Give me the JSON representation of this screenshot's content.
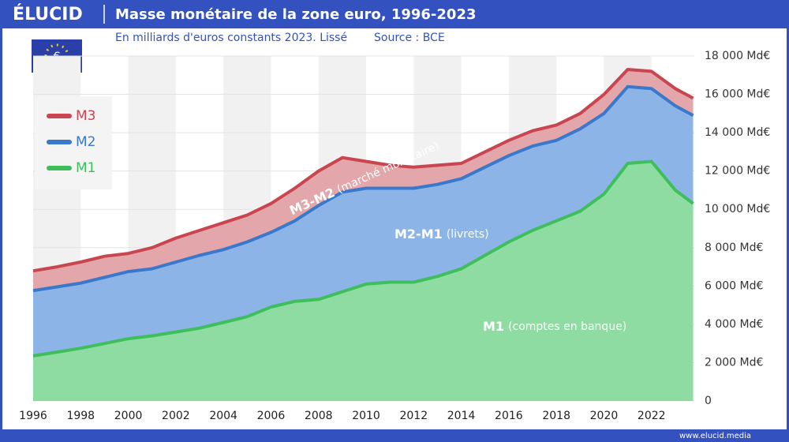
{
  "brand": "ÉLUCID",
  "footer": "www.elucid.media",
  "chart_data": {
    "type": "area",
    "title": "Masse monétaire de la zone euro, 1996-2023",
    "subtitle": "En milliards d'euros constants 2023. Lissé",
    "source": "Source : BCE",
    "x": [
      1996,
      1997,
      1998,
      1999,
      2000,
      2001,
      2002,
      2003,
      2004,
      2005,
      2006,
      2007,
      2008,
      2009,
      2010,
      2011,
      2012,
      2013,
      2014,
      2015,
      2016,
      2017,
      2018,
      2019,
      2020,
      2021,
      2022,
      2023,
      2023.75
    ],
    "series": [
      {
        "name": "M3",
        "color": "#c9454f",
        "fill": "#e2a6ab",
        "values": [
          6790,
          7000,
          7250,
          7550,
          7700,
          8000,
          8500,
          8900,
          9300,
          9700,
          10300,
          11100,
          12000,
          12700,
          12500,
          12300,
          12200,
          12300,
          12400,
          13000,
          13600,
          14100,
          14400,
          15000,
          16000,
          17300,
          17200,
          16300,
          15800
        ]
      },
      {
        "name": "M2",
        "color": "#3a78cc",
        "fill": "#8db4e6",
        "values": [
          5760,
          5950,
          6150,
          6450,
          6750,
          6900,
          7250,
          7600,
          7900,
          8300,
          8800,
          9400,
          10200,
          10900,
          11100,
          11100,
          11100,
          11300,
          11600,
          12200,
          12800,
          13300,
          13600,
          14200,
          15000,
          16400,
          16300,
          15400,
          14900
        ]
      },
      {
        "name": "M1",
        "color": "#3fbf5c",
        "fill": "#8edca1",
        "values": [
          2350,
          2550,
          2750,
          3000,
          3250,
          3400,
          3600,
          3800,
          4100,
          4400,
          4900,
          5200,
          5300,
          5700,
          6100,
          6200,
          6200,
          6500,
          6900,
          7600,
          8300,
          8900,
          9400,
          9900,
          10800,
          12400,
          12500,
          11000,
          10300
        ]
      }
    ],
    "annotations": [
      {
        "bold": "M3-M2",
        "text": "(marché monétaire)"
      },
      {
        "bold": "M2-M1",
        "text": "(livrets)"
      },
      {
        "bold": "M1",
        "text": "(comptes en banque)"
      }
    ],
    "xlim": [
      1996,
      2023.8
    ],
    "xticks": [
      1996,
      1998,
      2000,
      2002,
      2004,
      2006,
      2008,
      2010,
      2012,
      2014,
      2016,
      2018,
      2020,
      2022
    ],
    "ylim": [
      0,
      18000
    ],
    "yticks": [
      0,
      {
        "value": 2000,
        "label": "2 000 Md€"
      },
      {
        "value": 4000,
        "label": "4 000 Md€"
      },
      {
        "value": 6000,
        "label": "6 000 Md€"
      },
      {
        "value": 8000,
        "label": "8 000 Md€"
      },
      {
        "value": 10000,
        "label": "10 000 Md€"
      },
      {
        "value": 12000,
        "label": "12 000 Md€"
      },
      {
        "value": 14000,
        "label": "14 000 Md€"
      },
      {
        "value": 16000,
        "label": "16 000 Md€"
      },
      {
        "value": 18000,
        "label": "18 000 Md€"
      }
    ],
    "grid": true,
    "legend": "upper left"
  }
}
